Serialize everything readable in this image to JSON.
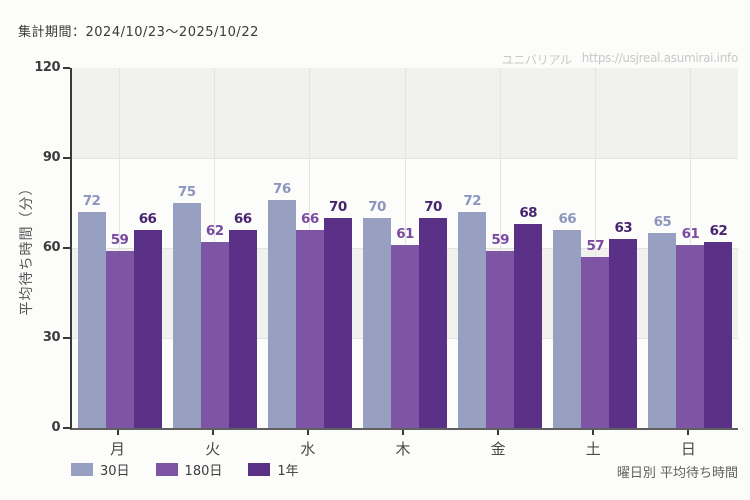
{
  "header": {
    "period_label": "集計期間：2024/10/23〜2025/10/22",
    "watermark_brand": "ユニバリアル",
    "watermark_url": "https://usjreal.asumirai.info"
  },
  "chart_data": {
    "type": "bar",
    "title": "曜日別 平均待ち時間",
    "categories": [
      "月",
      "火",
      "水",
      "木",
      "金",
      "土",
      "日"
    ],
    "series": [
      {
        "name": "30日",
        "color": "#98a0c2",
        "label_color": "#8d96bd",
        "values": [
          72,
          75,
          76,
          70,
          72,
          66,
          65
        ]
      },
      {
        "name": "180日",
        "color": "#7e55a4",
        "label_color": "#7a4ba1",
        "values": [
          59,
          62,
          66,
          61,
          59,
          57,
          61
        ]
      },
      {
        "name": "1年",
        "color": "#5b3187",
        "label_color": "#472470",
        "values": [
          66,
          66,
          70,
          70,
          68,
          63,
          62
        ]
      }
    ],
    "ylabel": "平均待ち時間（分）",
    "yticks": [
      0,
      30,
      60,
      90,
      120
    ],
    "ylim": [
      0,
      120
    ],
    "grid": true,
    "legend_position": "bottom-left",
    "footer_right": "曜日別 平均待ち時間"
  }
}
